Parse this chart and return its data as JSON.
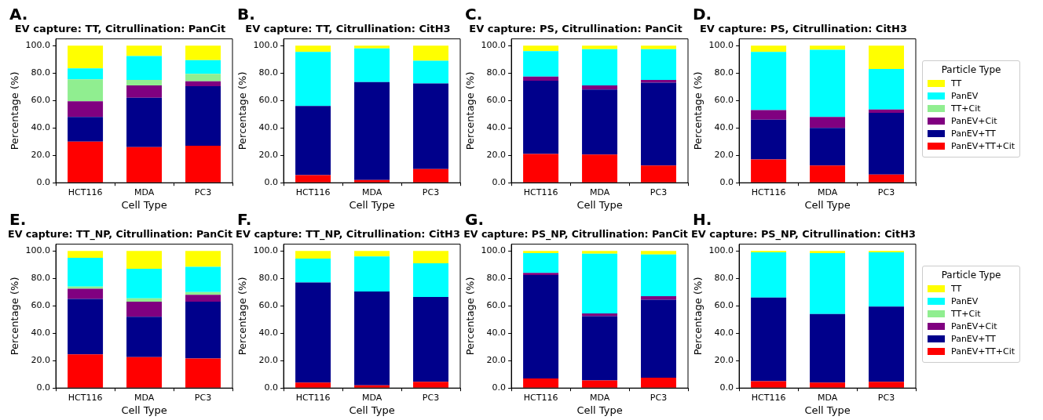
{
  "chart_data": [
    {
      "type": "bar",
      "stacked": true,
      "annotations": [
        "A."
      ],
      "title": "EV capture: TT, Citrullination: PanCit",
      "xlabel": "Cell Type",
      "ylabel": "Percentage (%)",
      "categories": [
        "HCT116",
        "MDA",
        "PC3"
      ],
      "ylim": [
        0,
        105
      ],
      "yticks": [
        {
          "value": 0,
          "label": "0.0"
        },
        {
          "value": 20,
          "label": "20.0"
        },
        {
          "value": 40,
          "label": "40.0"
        },
        {
          "value": 60,
          "label": "60.0"
        },
        {
          "value": 80,
          "label": "80.0"
        },
        {
          "value": 100,
          "label": "100.0"
        }
      ],
      "legend": false,
      "series": [
        {
          "color": "#ff0000",
          "values": [
            30,
            26,
            27
          ]
        },
        {
          "color": "#00008b",
          "values": [
            18,
            36,
            43.5
          ]
        },
        {
          "color": "#800080",
          "values": [
            11.5,
            9,
            3.5
          ]
        },
        {
          "color": "#90ee90",
          "values": [
            16,
            4,
            5.5
          ]
        },
        {
          "color": "#00ffff",
          "values": [
            8,
            17.5,
            10
          ]
        },
        {
          "color": "#ffff00",
          "values": [
            16.5,
            7.5,
            10.5
          ]
        }
      ]
    },
    {
      "type": "bar",
      "stacked": true,
      "annotations": [
        "B."
      ],
      "title": "EV capture: TT, Citrullination: CitH3",
      "xlabel": "Cell Type",
      "ylabel": "Percentage (%)",
      "categories": [
        "HCT116",
        "MDA",
        "PC3"
      ],
      "ylim": [
        0,
        105
      ],
      "yticks": [
        {
          "value": 0,
          "label": "0.0"
        },
        {
          "value": 20,
          "label": "20.0"
        },
        {
          "value": 40,
          "label": "40.0"
        },
        {
          "value": 60,
          "label": "60.0"
        },
        {
          "value": 80,
          "label": "80.0"
        },
        {
          "value": 100,
          "label": "100.0"
        }
      ],
      "legend": false,
      "series": [
        {
          "color": "#ff0000",
          "values": [
            5.5,
            2,
            10
          ]
        },
        {
          "color": "#00008b",
          "values": [
            50.5,
            71.5,
            62.5
          ]
        },
        {
          "color": "#800080",
          "values": [
            0,
            0,
            0
          ]
        },
        {
          "color": "#90ee90",
          "values": [
            0,
            0,
            0
          ]
        },
        {
          "color": "#00ffff",
          "values": [
            39.5,
            24.5,
            16.5
          ]
        },
        {
          "color": "#ffff00",
          "values": [
            4.5,
            2,
            11
          ]
        }
      ]
    },
    {
      "type": "bar",
      "stacked": true,
      "annotations": [
        "C."
      ],
      "title": "EV capture: PS, Citrullination: PanCit",
      "xlabel": "Cell Type",
      "ylabel": "Percentage (%)",
      "categories": [
        "HCT116",
        "MDA",
        "PC3"
      ],
      "ylim": [
        0,
        105
      ],
      "yticks": [
        {
          "value": 0,
          "label": "0.0"
        },
        {
          "value": 20,
          "label": "20.0"
        },
        {
          "value": 40,
          "label": "40.0"
        },
        {
          "value": 60,
          "label": "60.0"
        },
        {
          "value": 80,
          "label": "80.0"
        },
        {
          "value": 100,
          "label": "100.0"
        }
      ],
      "legend": false,
      "series": [
        {
          "color": "#ff0000",
          "values": [
            21,
            20.5,
            12.5
          ]
        },
        {
          "color": "#00008b",
          "values": [
            53.5,
            47.5,
            60.5
          ]
        },
        {
          "color": "#800080",
          "values": [
            3,
            3,
            2
          ]
        },
        {
          "color": "#90ee90",
          "values": [
            0,
            0,
            0
          ]
        },
        {
          "color": "#00ffff",
          "values": [
            18.5,
            26.5,
            22.5
          ]
        },
        {
          "color": "#ffff00",
          "values": [
            4,
            2.5,
            2.5
          ]
        }
      ]
    },
    {
      "type": "bar",
      "stacked": true,
      "annotations": [
        "D."
      ],
      "title": "EV capture: PS, Citrullination: CitH3",
      "xlabel": "Cell Type",
      "ylabel": "Percentage (%)",
      "categories": [
        "HCT116",
        "MDA",
        "PC3"
      ],
      "ylim": [
        0,
        105
      ],
      "yticks": [
        {
          "value": 0,
          "label": "0.0"
        },
        {
          "value": 20,
          "label": "20.0"
        },
        {
          "value": 40,
          "label": "40.0"
        },
        {
          "value": 60,
          "label": "60.0"
        },
        {
          "value": 80,
          "label": "80.0"
        },
        {
          "value": 100,
          "label": "100.0"
        }
      ],
      "legend": "right",
      "legend_title": "Particle Type",
      "series": [
        {
          "name": "PanEV+TT+Cit",
          "color": "#ff0000",
          "values": [
            17,
            12.5,
            6
          ]
        },
        {
          "name": "PanEV+TT",
          "color": "#00008b",
          "values": [
            29,
            27.5,
            45
          ]
        },
        {
          "name": "PanEV+Cit",
          "color": "#800080",
          "values": [
            7,
            8,
            2.5
          ]
        },
        {
          "name": "TT+Cit",
          "color": "#90ee90",
          "values": [
            0,
            0,
            0
          ]
        },
        {
          "name": "PanEV",
          "color": "#00ffff",
          "values": [
            42.5,
            49,
            29.5
          ]
        },
        {
          "name": "TT",
          "color": "#ffff00",
          "values": [
            4.5,
            3,
            17
          ]
        }
      ]
    },
    {
      "type": "bar",
      "stacked": true,
      "annotations": [
        "E."
      ],
      "title": "EV capture: TT_NP, Citrullination: PanCit",
      "xlabel": "Cell Type",
      "ylabel": "Percentage (%)",
      "categories": [
        "HCT116",
        "MDA",
        "PC3"
      ],
      "ylim": [
        0,
        105
      ],
      "yticks": [
        {
          "value": 0,
          "label": "0.0"
        },
        {
          "value": 20,
          "label": "20.0"
        },
        {
          "value": 40,
          "label": "40.0"
        },
        {
          "value": 60,
          "label": "60.0"
        },
        {
          "value": 80,
          "label": "80.0"
        },
        {
          "value": 100,
          "label": "100.0"
        }
      ],
      "legend": false,
      "series": [
        {
          "color": "#ff0000",
          "values": [
            24.5,
            22.5,
            21.5
          ]
        },
        {
          "color": "#00008b",
          "values": [
            40.5,
            29.5,
            41.5
          ]
        },
        {
          "color": "#800080",
          "values": [
            7.5,
            11,
            5
          ]
        },
        {
          "color": "#90ee90",
          "values": [
            1.5,
            2.5,
            2
          ]
        },
        {
          "color": "#00ffff",
          "values": [
            21,
            21.5,
            18.5
          ]
        },
        {
          "color": "#ffff00",
          "values": [
            5,
            13,
            11.5
          ]
        }
      ]
    },
    {
      "type": "bar",
      "stacked": true,
      "annotations": [
        "F."
      ],
      "title": "EV capture: TT_NP, Citrullination: CitH3",
      "xlabel": "Cell Type",
      "ylabel": "Percentage (%)",
      "categories": [
        "HCT116",
        "MDA",
        "PC3"
      ],
      "ylim": [
        0,
        105
      ],
      "yticks": [
        {
          "value": 0,
          "label": "0.0"
        },
        {
          "value": 20,
          "label": "20.0"
        },
        {
          "value": 40,
          "label": "40.0"
        },
        {
          "value": 60,
          "label": "60.0"
        },
        {
          "value": 80,
          "label": "80.0"
        },
        {
          "value": 100,
          "label": "100.0"
        }
      ],
      "legend": false,
      "series": [
        {
          "color": "#ff0000",
          "values": [
            4,
            2,
            4.5
          ]
        },
        {
          "color": "#00008b",
          "values": [
            73,
            68.5,
            62
          ]
        },
        {
          "color": "#800080",
          "values": [
            0,
            0,
            0
          ]
        },
        {
          "color": "#90ee90",
          "values": [
            0,
            0,
            0
          ]
        },
        {
          "color": "#00ffff",
          "values": [
            17.5,
            25.5,
            24.5
          ]
        },
        {
          "color": "#ffff00",
          "values": [
            5.5,
            4,
            9
          ]
        }
      ]
    },
    {
      "type": "bar",
      "stacked": true,
      "annotations": [
        "G."
      ],
      "title": "EV capture: PS_NP, Citrullination: PanCit",
      "xlabel": "Cell Type",
      "ylabel": "Percentage (%)",
      "categories": [
        "HCT116",
        "MDA",
        "PC3"
      ],
      "ylim": [
        0,
        105
      ],
      "yticks": [
        {
          "value": 0,
          "label": "0.0"
        },
        {
          "value": 20,
          "label": "20.0"
        },
        {
          "value": 40,
          "label": "40.0"
        },
        {
          "value": 60,
          "label": "60.0"
        },
        {
          "value": 80,
          "label": "80.0"
        },
        {
          "value": 100,
          "label": "100.0"
        }
      ],
      "legend": false,
      "series": [
        {
          "color": "#ff0000",
          "values": [
            7,
            5.5,
            7.5
          ]
        },
        {
          "color": "#00008b",
          "values": [
            75.5,
            47,
            57
          ]
        },
        {
          "color": "#800080",
          "values": [
            1.5,
            2,
            2.5
          ]
        },
        {
          "color": "#90ee90",
          "values": [
            0,
            0,
            0
          ]
        },
        {
          "color": "#00ffff",
          "values": [
            14.5,
            43.5,
            30.5
          ]
        },
        {
          "color": "#ffff00",
          "values": [
            1.5,
            2,
            2.5
          ]
        }
      ]
    },
    {
      "type": "bar",
      "stacked": true,
      "annotations": [
        "H."
      ],
      "title": "EV capture: PS_NP, Citrullination: CitH3",
      "xlabel": "Cell Type",
      "ylabel": "Percentage (%)",
      "categories": [
        "HCT116",
        "MDA",
        "PC3"
      ],
      "ylim": [
        0,
        105
      ],
      "yticks": [
        {
          "value": 0,
          "label": "0.0"
        },
        {
          "value": 20,
          "label": "20.0"
        },
        {
          "value": 40,
          "label": "40.0"
        },
        {
          "value": 60,
          "label": "60.0"
        },
        {
          "value": 80,
          "label": "80.0"
        },
        {
          "value": 100,
          "label": "100.0"
        }
      ],
      "legend": "right",
      "legend_title": "Particle Type",
      "series": [
        {
          "name": "PanEV+TT+Cit",
          "color": "#ff0000",
          "values": [
            5,
            4,
            4.5
          ]
        },
        {
          "name": "PanEV+TT",
          "color": "#00008b",
          "values": [
            61,
            50,
            55
          ]
        },
        {
          "name": "PanEV+Cit",
          "color": "#800080",
          "values": [
            0,
            0,
            0
          ]
        },
        {
          "name": "TT+Cit",
          "color": "#90ee90",
          "values": [
            0,
            0,
            0
          ]
        },
        {
          "name": "PanEV",
          "color": "#00ffff",
          "values": [
            33,
            44.5,
            39.5
          ]
        },
        {
          "name": "TT",
          "color": "#ffff00",
          "values": [
            1,
            1.5,
            1
          ]
        }
      ]
    }
  ]
}
